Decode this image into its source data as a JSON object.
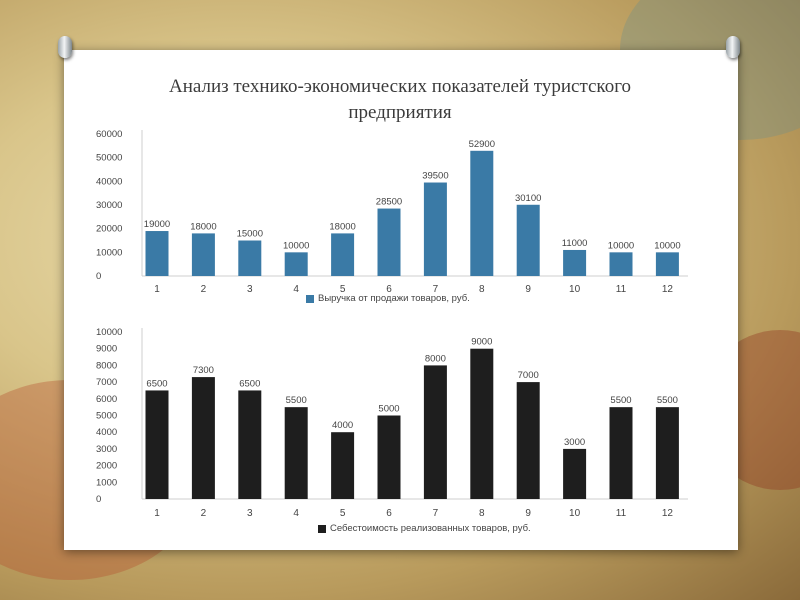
{
  "slide": {
    "title_line1": "Анализ технико-экономических показателей туристского",
    "title_line2": "предприятия"
  },
  "chart_data": [
    {
      "type": "bar",
      "categories": [
        "1",
        "2",
        "3",
        "4",
        "5",
        "6",
        "7",
        "8",
        "9",
        "10",
        "11",
        "12"
      ],
      "series": [
        {
          "name": "Выручка от продажи товаров, руб.",
          "values": [
            19000,
            18000,
            15000,
            10000,
            18000,
            28500,
            39500,
            52900,
            30100,
            11000,
            10000,
            10000
          ],
          "color": "#3a7aa6"
        }
      ],
      "yticks": [
        "60000",
        "50000",
        "40000",
        "30000",
        "20000",
        "10000",
        "0"
      ],
      "ylim": [
        0,
        60000
      ],
      "legend_position": "bottom"
    },
    {
      "type": "bar",
      "categories": [
        "1",
        "2",
        "3",
        "4",
        "5",
        "6",
        "7",
        "8",
        "9",
        "10",
        "11",
        "12"
      ],
      "series": [
        {
          "name": "Себестоимость реализованных товаров, руб.",
          "values": [
            6500,
            7300,
            6500,
            5500,
            4000,
            5000,
            8000,
            9000,
            7000,
            3000,
            5500,
            5500
          ],
          "color": "#1e1e1e"
        }
      ],
      "yticks": [
        "10000",
        "9000",
        "8000",
        "7000",
        "6000",
        "5000",
        "4000",
        "3000",
        "2000",
        "1000",
        "0"
      ],
      "ylim": [
        0,
        10000
      ],
      "legend_position": "bottom"
    }
  ]
}
